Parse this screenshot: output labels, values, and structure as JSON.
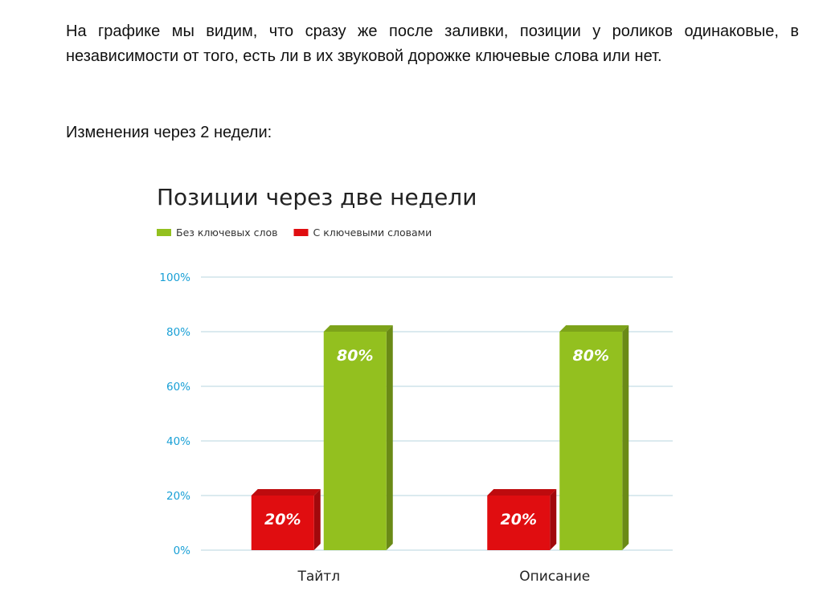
{
  "text": {
    "paragraph": "На графике мы видим, что сразу же после заливки, позиции у роликов одинаковые, в независимости от того, есть ли в их звуковой дорожке ключевые слова или нет.",
    "subheading": "Изменения через 2 недели:"
  },
  "chart_data": {
    "type": "bar",
    "title": "Позиции через две недели",
    "categories": [
      "Тайтл",
      "Описание"
    ],
    "series": [
      {
        "name": "С ключевыми словами",
        "color": "#e00d10",
        "values": [
          20,
          20
        ],
        "labels": [
          "20%",
          "20%"
        ]
      },
      {
        "name": "Без ключевых слов",
        "color": "#93c01f",
        "values": [
          80,
          80
        ],
        "labels": [
          "80%",
          "80%"
        ]
      }
    ],
    "legend": {
      "placement": "top-left",
      "entries": [
        {
          "name": "Без ключевых слов",
          "color": "#93c01f"
        },
        {
          "name": "С ключевыми словами",
          "color": "#e00d10"
        }
      ]
    },
    "yticks": [
      0,
      20,
      40,
      60,
      80,
      100
    ],
    "ytick_labels": [
      "0%",
      "20%",
      "40%",
      "60%",
      "80%",
      "100%"
    ],
    "ylim": [
      0,
      100
    ],
    "xlabel": "",
    "ylabel": "",
    "grid": true,
    "colors": {
      "tick_text": "#1aa0d6",
      "grid": "#cfe3ea"
    }
  }
}
